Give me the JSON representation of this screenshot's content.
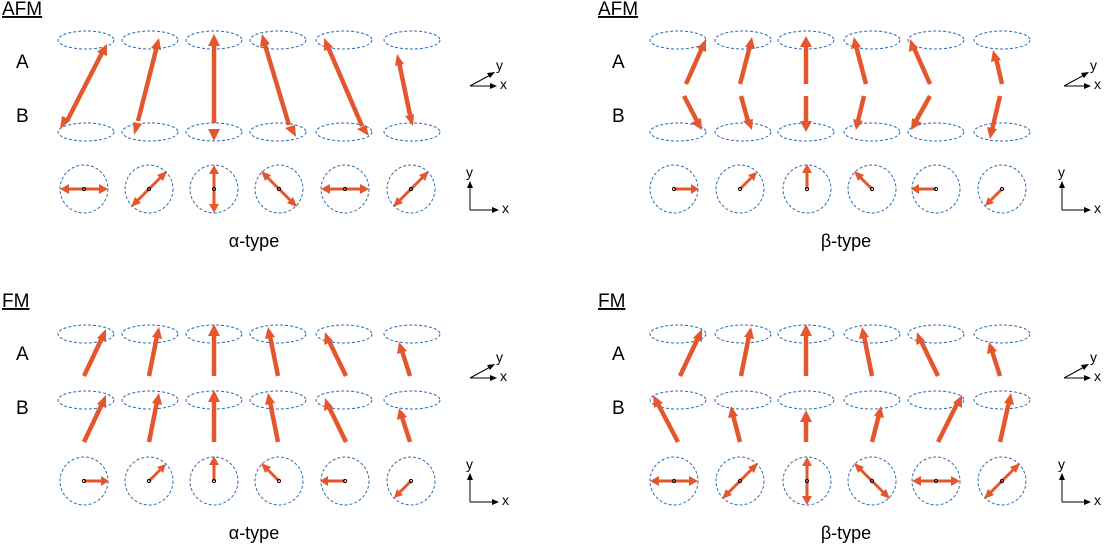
{
  "panels": [
    {
      "id": "afm-alpha",
      "title": "AFM",
      "row_labels": [
        "A",
        "B"
      ],
      "caption": "α-type",
      "axis3d": {
        "y": "y",
        "x": "x"
      },
      "axis2d": {
        "y": "y",
        "x": "x"
      }
    },
    {
      "id": "afm-beta",
      "title": "AFM",
      "row_labels": [
        "A",
        "B"
      ],
      "caption": "β-type",
      "axis3d": {
        "y": "y",
        "x": "x"
      },
      "axis2d": {
        "y": "y",
        "x": "x"
      }
    },
    {
      "id": "fm-alpha",
      "title": "FM",
      "row_labels": [
        "A",
        "B"
      ],
      "caption": "α-type",
      "axis3d": {
        "y": "y",
        "x": "x"
      },
      "axis2d": {
        "y": "y",
        "x": "x"
      }
    },
    {
      "id": "fm-beta",
      "title": "FM",
      "row_labels": [
        "A",
        "B"
      ],
      "caption": "β-type",
      "axis3d": {
        "y": "y",
        "x": "x"
      },
      "axis2d": {
        "y": "y",
        "x": "x"
      }
    }
  ],
  "colors": {
    "arrow": "#e4572e",
    "ring": "#2b6cb0",
    "text": "#000000"
  }
}
